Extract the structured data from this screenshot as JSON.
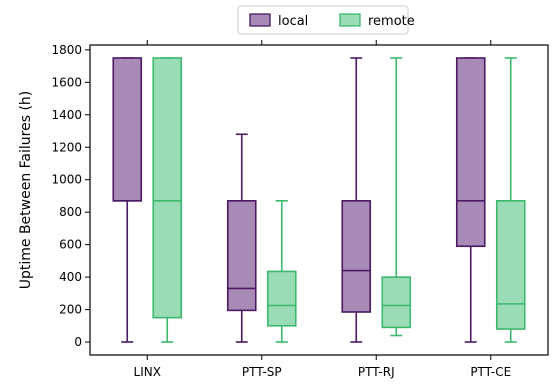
{
  "chart_data": {
    "type": "box",
    "title": "",
    "xlabel": "",
    "ylabel": "Uptime Between Failures (h)",
    "ylim": [
      -80,
      1830
    ],
    "yticks": [
      0,
      200,
      400,
      600,
      800,
      1000,
      1200,
      1400,
      1600,
      1800
    ],
    "categories": [
      "LINX",
      "PTT-SP",
      "PTT-RJ",
      "PTT-CE"
    ],
    "legend_position": "top-center",
    "grid": false,
    "series": [
      {
        "name": "local",
        "fill": "#a78ab5",
        "stroke": "#4b1a63",
        "boxes": [
          {
            "whisker_low": 0,
            "q1": 870,
            "median": 870,
            "q3": 1750,
            "whisker_high": 1750
          },
          {
            "whisker_low": 0,
            "q1": 195,
            "median": 330,
            "q3": 870,
            "whisker_high": 1280
          },
          {
            "whisker_low": 0,
            "q1": 185,
            "median": 440,
            "q3": 870,
            "whisker_high": 1750
          },
          {
            "whisker_low": 0,
            "q1": 590,
            "median": 870,
            "q3": 1750,
            "whisker_high": 1750
          }
        ]
      },
      {
        "name": "remote",
        "fill": "#99dcb5",
        "stroke": "#3db86e",
        "boxes": [
          {
            "whisker_low": 0,
            "q1": 150,
            "median": 870,
            "q3": 1750,
            "whisker_high": 1750
          },
          {
            "whisker_low": 0,
            "q1": 100,
            "median": 225,
            "q3": 435,
            "whisker_high": 870
          },
          {
            "whisker_low": 40,
            "q1": 90,
            "median": 225,
            "q3": 400,
            "whisker_high": 1750
          },
          {
            "whisker_low": 0,
            "q1": 80,
            "median": 235,
            "q3": 870,
            "whisker_high": 1750
          }
        ]
      }
    ]
  }
}
